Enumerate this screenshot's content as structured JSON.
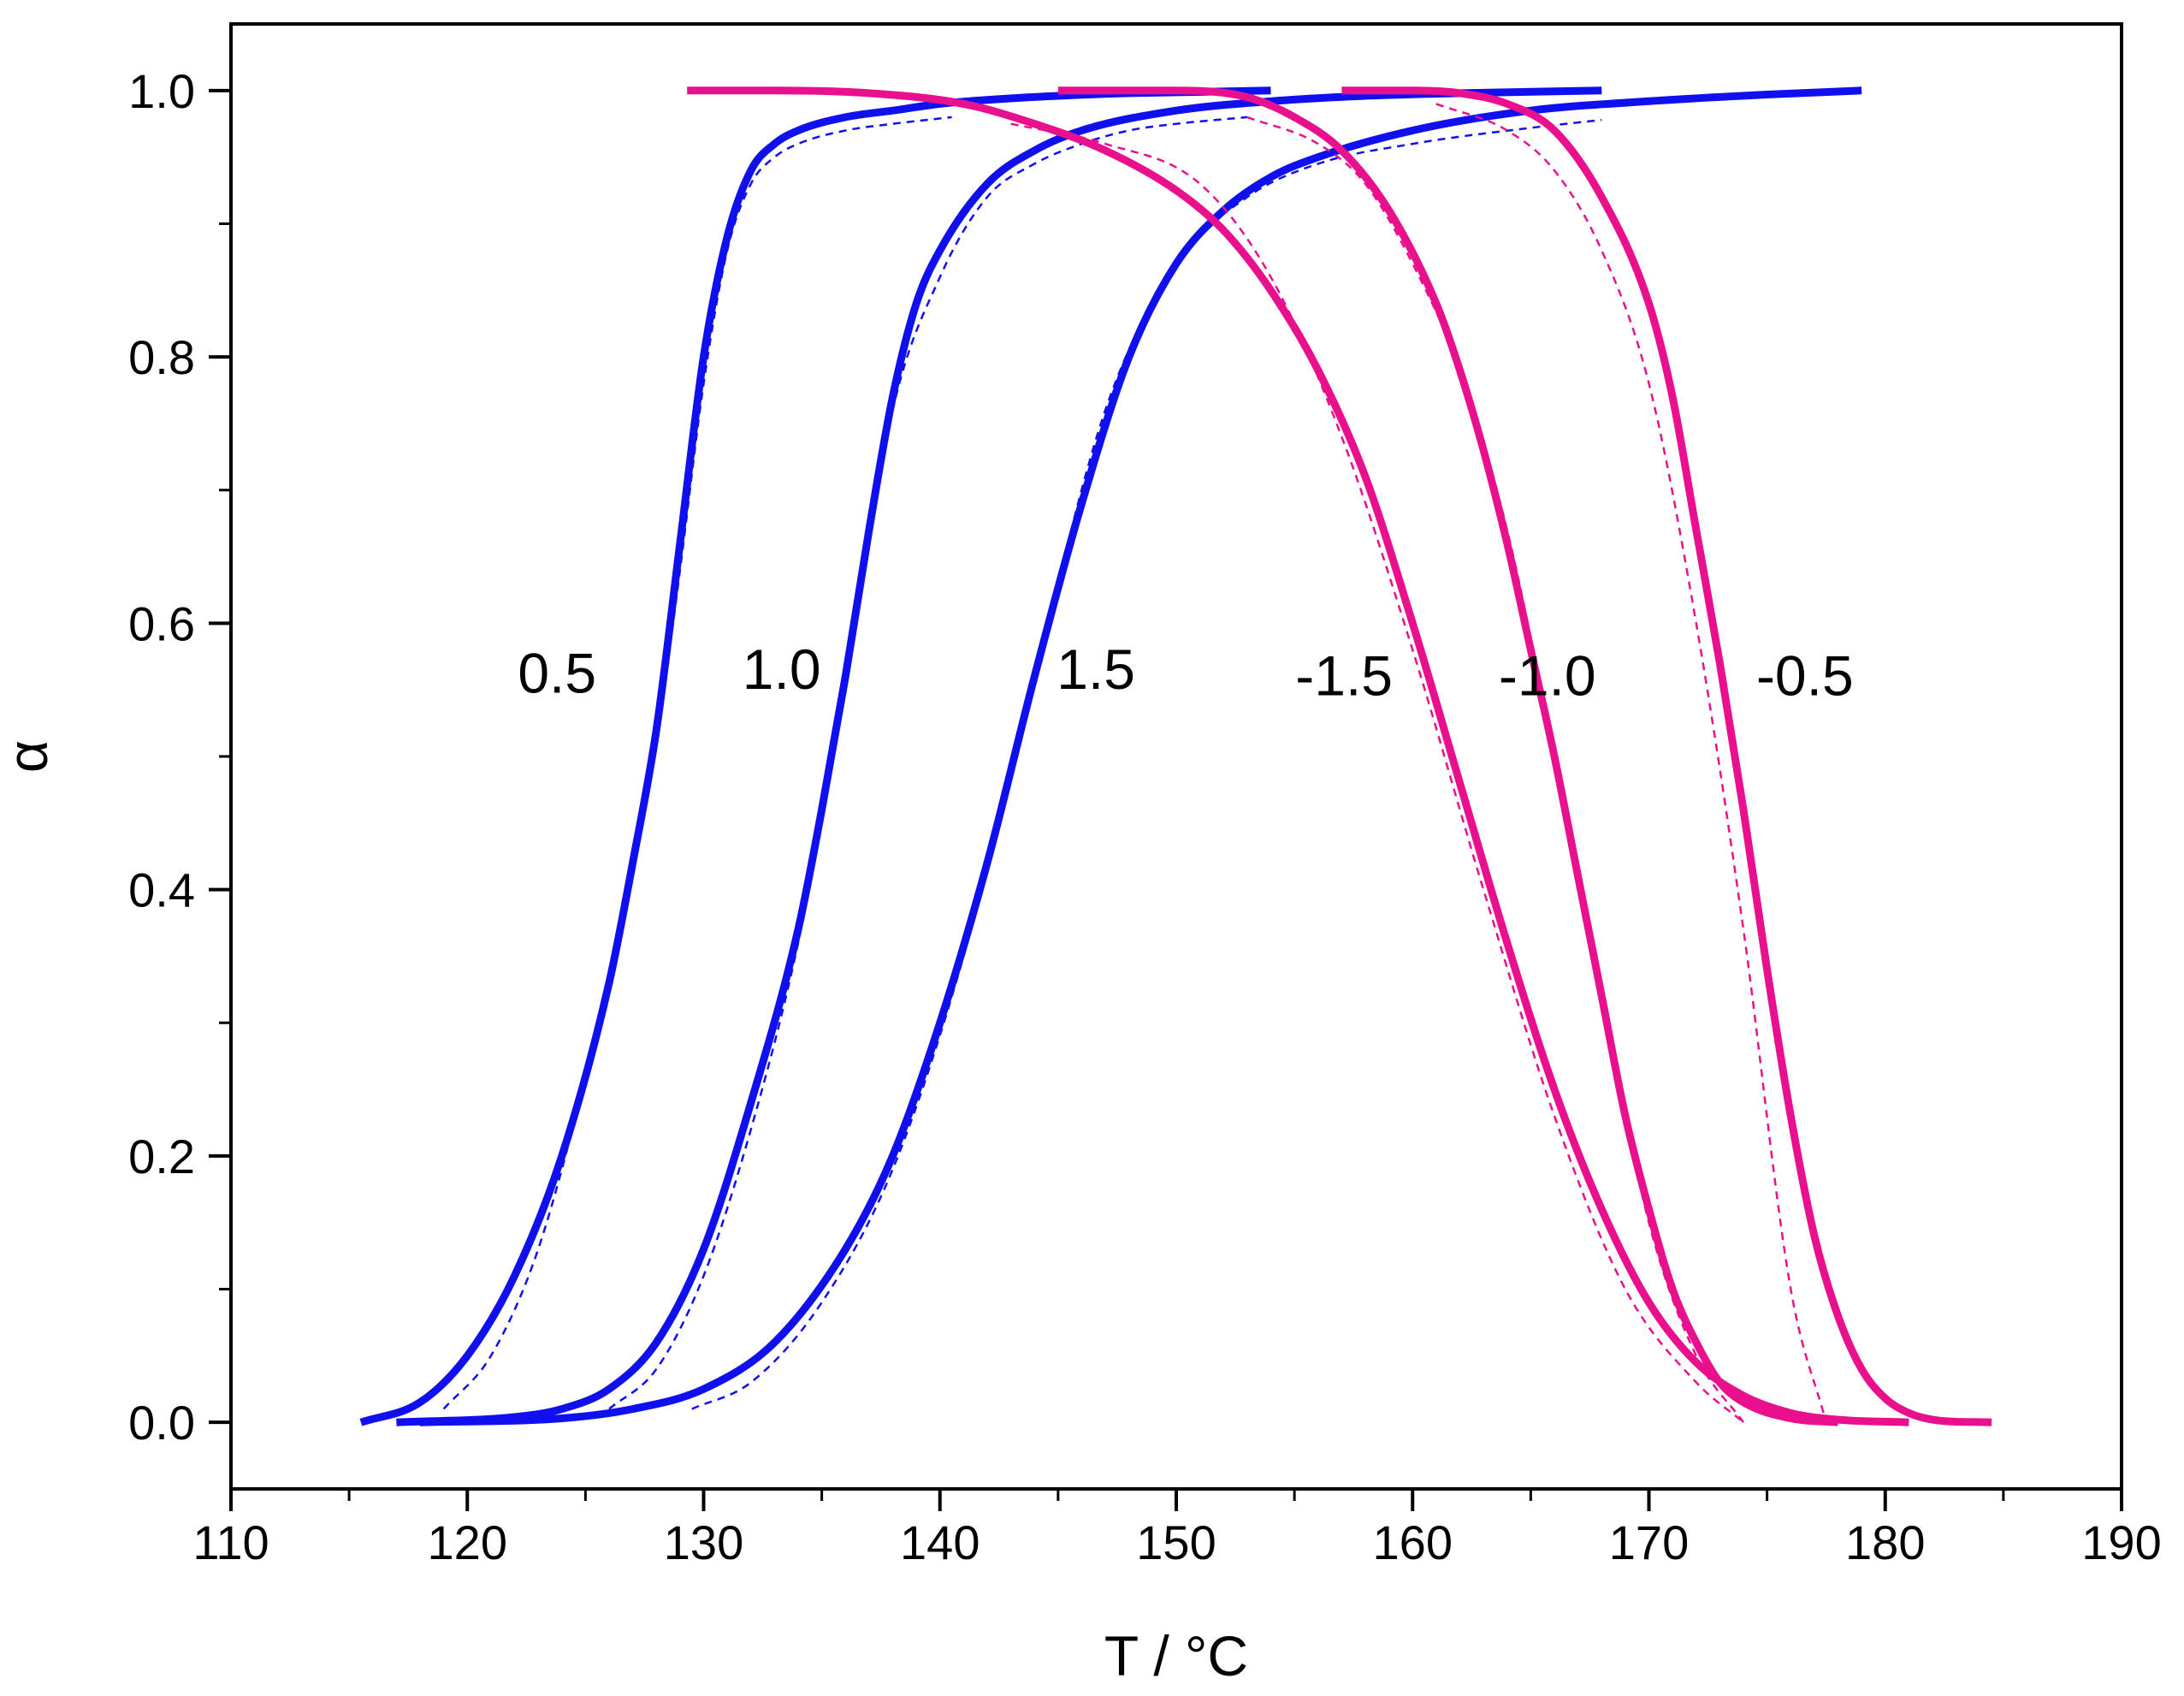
{
  "chart_data": {
    "type": "line",
    "title": "",
    "xlabel": "T / °C",
    "ylabel": "α",
    "xlim": [
      110,
      190
    ],
    "ylim": [
      -0.05,
      1.05
    ],
    "xticks": [
      110,
      120,
      130,
      140,
      150,
      160,
      170,
      180,
      190
    ],
    "xtick_labels": [
      "110",
      "120",
      "130",
      "140",
      "150",
      "160",
      "170",
      "180",
      "190"
    ],
    "yticks": [
      0.0,
      0.2,
      0.4,
      0.6,
      0.8,
      1.0
    ],
    "ytick_labels": [
      "0.0",
      "0.2",
      "0.4",
      "0.6",
      "0.8",
      "1.0"
    ],
    "grid": false,
    "colors": {
      "heating": "#1010ee",
      "cooling": "#e8108c",
      "axis": "#000000"
    },
    "series": [
      {
        "name": "0.5",
        "label": "0.5",
        "kind": "experimental",
        "color": "#1010ee",
        "x": [
          115.5,
          118,
          120,
          122,
          124,
          126,
          127,
          128,
          129,
          130,
          131,
          132,
          133,
          134,
          136,
          138,
          140,
          142,
          145,
          148,
          151,
          154
        ],
        "y": [
          0.0,
          0.015,
          0.05,
          0.11,
          0.2,
          0.33,
          0.42,
          0.52,
          0.66,
          0.8,
          0.89,
          0.94,
          0.96,
          0.97,
          0.98,
          0.985,
          0.99,
          0.993,
          0.996,
          0.998,
          0.999,
          1.0
        ]
      },
      {
        "name": "0.5 model",
        "kind": "model",
        "color": "#1010ee",
        "x": [
          119,
          121,
          123,
          125,
          127,
          128,
          129,
          130,
          131,
          132,
          133,
          134,
          136,
          138,
          140.5
        ],
        "y": [
          0.01,
          0.05,
          0.13,
          0.26,
          0.42,
          0.51,
          0.64,
          0.78,
          0.88,
          0.93,
          0.95,
          0.96,
          0.97,
          0.975,
          0.98
        ]
      },
      {
        "name": "1.0",
        "label": "1.0",
        "kind": "experimental",
        "color": "#1010ee",
        "x": [
          117,
          122,
          124,
          126,
          128,
          130,
          132,
          134,
          135,
          136,
          137,
          138,
          139,
          140,
          142,
          144,
          146,
          150,
          154,
          158,
          162,
          168
        ],
        "y": [
          0.0,
          0.004,
          0.01,
          0.025,
          0.06,
          0.13,
          0.24,
          0.37,
          0.46,
          0.56,
          0.67,
          0.77,
          0.84,
          0.88,
          0.93,
          0.955,
          0.97,
          0.985,
          0.992,
          0.996,
          0.998,
          1.0
        ]
      },
      {
        "name": "1.0 model",
        "kind": "model",
        "color": "#1010ee",
        "x": [
          126,
          128,
          130,
          132,
          134,
          136,
          138,
          140,
          142,
          144,
          146,
          148,
          150,
          153
        ],
        "y": [
          0.01,
          0.04,
          0.11,
          0.22,
          0.36,
          0.55,
          0.76,
          0.86,
          0.92,
          0.945,
          0.96,
          0.97,
          0.975,
          0.98
        ]
      },
      {
        "name": "1.5",
        "label": "1.5",
        "kind": "experimental",
        "color": "#1010ee",
        "x": [
          118,
          124,
          127,
          130,
          133,
          136,
          138,
          140,
          142,
          144,
          146,
          148,
          150,
          152,
          154,
          156,
          160,
          165,
          170,
          175,
          179
        ],
        "y": [
          0.0,
          0.003,
          0.01,
          0.025,
          0.06,
          0.13,
          0.2,
          0.3,
          0.42,
          0.56,
          0.69,
          0.8,
          0.87,
          0.91,
          0.935,
          0.95,
          0.97,
          0.985,
          0.992,
          0.997,
          1.0
        ]
      },
      {
        "name": "1.5 model",
        "kind": "model",
        "color": "#1010ee",
        "x": [
          129.5,
          132,
          135,
          138,
          141,
          144,
          147,
          150,
          153,
          156,
          160,
          165,
          168
        ],
        "y": [
          0.01,
          0.03,
          0.09,
          0.19,
          0.35,
          0.56,
          0.76,
          0.87,
          0.92,
          0.945,
          0.96,
          0.972,
          0.978
        ]
      },
      {
        "name": "-1.5",
        "label": "-1.5",
        "kind": "experimental",
        "color": "#e8108c",
        "x": [
          129.3,
          133,
          137,
          141,
          144,
          147,
          150,
          152,
          154,
          156,
          158,
          160,
          162,
          164,
          166,
          168,
          170,
          172,
          174,
          176,
          178,
          181
        ],
        "y": [
          1.0,
          1.0,
          0.998,
          0.99,
          0.975,
          0.955,
          0.925,
          0.895,
          0.85,
          0.79,
          0.71,
          0.6,
          0.48,
          0.36,
          0.25,
          0.16,
          0.09,
          0.045,
          0.02,
          0.007,
          0.002,
          0.0
        ]
      },
      {
        "name": "-1.5 model",
        "kind": "model",
        "color": "#e8108c",
        "x": [
          143,
          147,
          151,
          154,
          157,
          160,
          163,
          166,
          169,
          172,
          174
        ],
        "y": [
          0.975,
          0.96,
          0.93,
          0.86,
          0.74,
          0.58,
          0.4,
          0.23,
          0.1,
          0.03,
          0.0
        ]
      },
      {
        "name": "-1.0",
        "label": "-1.0",
        "kind": "experimental",
        "color": "#e8108c",
        "x": [
          145,
          150,
          153,
          155,
          157,
          159,
          161,
          162,
          163,
          164,
          165,
          166,
          167,
          168,
          169,
          170,
          171,
          172,
          173,
          174,
          176,
          178
        ],
        "y": [
          1.0,
          1.0,
          0.995,
          0.98,
          0.955,
          0.91,
          0.84,
          0.79,
          0.73,
          0.66,
          0.58,
          0.5,
          0.41,
          0.32,
          0.23,
          0.16,
          0.1,
          0.06,
          0.03,
          0.015,
          0.003,
          0.0
        ]
      },
      {
        "name": "-1.0 model",
        "kind": "model",
        "color": "#e8108c",
        "x": [
          153,
          156,
          158,
          160,
          162,
          164,
          166,
          168,
          170,
          172,
          174
        ],
        "y": [
          0.98,
          0.96,
          0.93,
          0.87,
          0.79,
          0.67,
          0.5,
          0.32,
          0.15,
          0.05,
          0.0
        ]
      },
      {
        "name": "-0.5",
        "label": "-0.5",
        "kind": "experimental",
        "color": "#e8108c",
        "x": [
          157,
          160,
          162,
          164,
          166,
          168,
          170,
          171,
          172,
          173,
          174,
          175,
          176,
          177,
          178,
          179,
          180,
          181,
          182,
          184.5
        ],
        "y": [
          1.0,
          1.0,
          0.998,
          0.99,
          0.97,
          0.92,
          0.84,
          0.77,
          0.67,
          0.57,
          0.46,
          0.34,
          0.23,
          0.14,
          0.08,
          0.04,
          0.018,
          0.007,
          0.002,
          0.0
        ]
      },
      {
        "name": "-0.5 model",
        "kind": "model",
        "color": "#e8108c",
        "x": [
          161,
          164,
          166,
          168,
          170,
          172,
          174,
          176,
          177.5
        ],
        "y": [
          0.99,
          0.97,
          0.94,
          0.88,
          0.78,
          0.6,
          0.37,
          0.1,
          0.0
        ]
      }
    ],
    "annotations": [
      {
        "text": "0.5",
        "x": 123.8,
        "y": 0.562
      },
      {
        "text": "1.0",
        "x": 133.3,
        "y": 0.565
      },
      {
        "text": "1.5",
        "x": 146.6,
        "y": 0.565
      },
      {
        "text": "-1.5",
        "x": 157.1,
        "y": 0.56
      },
      {
        "text": "-1.0",
        "x": 165.7,
        "y": 0.56
      },
      {
        "text": "-0.5",
        "x": 176.6,
        "y": 0.56
      }
    ]
  }
}
